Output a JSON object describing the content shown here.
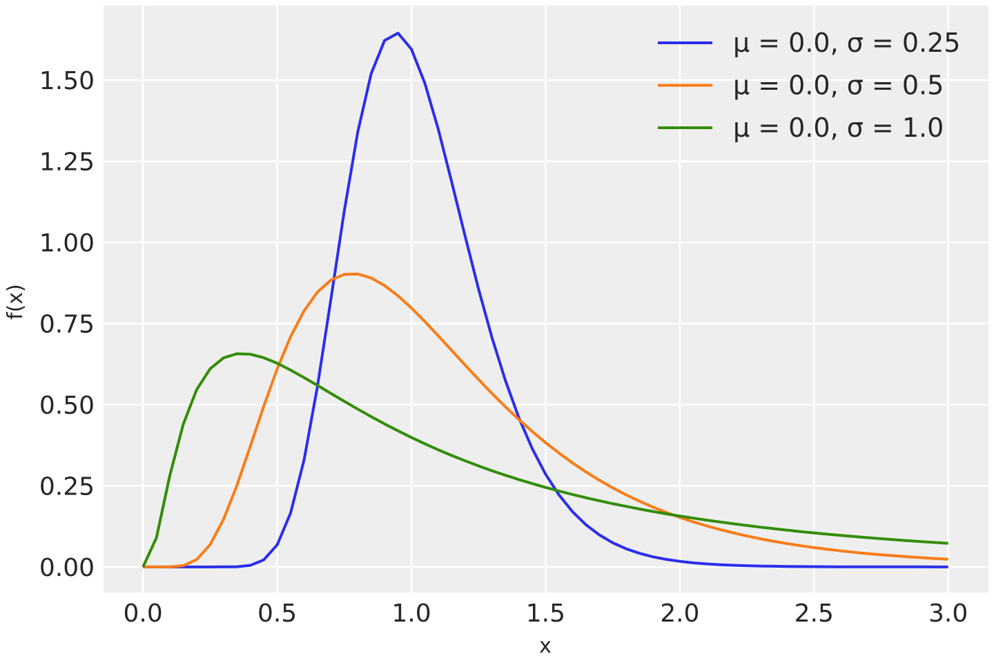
{
  "chart_data": {
    "type": "line",
    "title": "",
    "xlabel": "x",
    "ylabel": "f(x)",
    "xlim": [
      -0.147,
      3.15
    ],
    "ylim": [
      -0.079,
      1.73
    ],
    "grid": true,
    "legend_position": "top-right",
    "background_color": "#eeeeee",
    "grid_color": "#ffffff",
    "x_ticks": [
      0.0,
      0.5,
      1.0,
      1.5,
      2.0,
      2.5,
      3.0
    ],
    "x_tick_labels": [
      "0.0",
      "0.5",
      "1.0",
      "1.5",
      "2.0",
      "2.5",
      "3.0"
    ],
    "y_ticks": [
      0.0,
      0.25,
      0.5,
      0.75,
      1.0,
      1.25,
      1.5
    ],
    "y_tick_labels": [
      "0.00",
      "0.25",
      "0.50",
      "0.75",
      "1.00",
      "1.25",
      "1.50"
    ],
    "x": [
      0,
      0.05,
      0.1,
      0.15,
      0.2,
      0.25,
      0.3,
      0.35,
      0.4,
      0.45,
      0.5,
      0.55,
      0.6,
      0.65,
      0.7,
      0.75,
      0.8,
      0.85,
      0.9,
      0.95,
      1.0,
      1.05,
      1.1,
      1.15,
      1.2,
      1.25,
      1.3,
      1.35,
      1.4,
      1.45,
      1.5,
      1.55,
      1.6,
      1.65,
      1.7,
      1.75,
      1.8,
      1.85,
      1.9,
      1.95,
      2.0,
      2.05,
      2.1,
      2.15,
      2.2,
      2.25,
      2.3,
      2.35,
      2.4,
      2.45,
      2.5,
      2.55,
      2.6,
      2.65,
      2.7,
      2.75,
      2.8,
      2.85,
      2.9,
      2.95,
      3.0
    ],
    "series": [
      {
        "name": "μ = 0.0, σ = 0.25",
        "color": "#2a2eec",
        "values": [
          0,
          0,
          0,
          0,
          0,
          0,
          0.0001,
          0.0007,
          0.0048,
          0.0216,
          0.0683,
          0.1662,
          0.3297,
          0.5563,
          0.8239,
          1.0974,
          1.3393,
          1.5198,
          1.6224,
          1.6448,
          1.5958,
          1.4911,
          1.349,
          1.1869,
          1.0193,
          0.8571,
          0.7077,
          0.5751,
          0.4608,
          0.3647,
          0.2855,
          0.2215,
          0.1704,
          0.1301,
          0.0987,
          0.0744,
          0.0559,
          0.0418,
          0.0311,
          0.0231,
          0.0171,
          0.0126,
          0.0093,
          0.0068,
          0.005,
          0.0037,
          0.0027,
          0.002,
          0.0014,
          0.0011,
          0.0008,
          0.0006,
          0.0004,
          0.0003,
          0.0002,
          0.0002,
          0.0001,
          0.0001,
          0.0001,
          0.0,
          0.0
        ]
      },
      {
        "name": "μ = 0.0, σ = 0.5",
        "color": "#fa7c17",
        "values": [
          0,
          0,
          0.0002,
          0.004,
          0.0225,
          0.0684,
          0.1465,
          0.2516,
          0.3721,
          0.4953,
          0.6104,
          0.7098,
          0.7891,
          0.8469,
          0.8838,
          0.9016,
          0.9028,
          0.8904,
          0.8671,
          0.8355,
          0.7979,
          0.7563,
          0.7123,
          0.6672,
          0.6221,
          0.5778,
          0.5348,
          0.4936,
          0.4545,
          0.4175,
          0.3829,
          0.3506,
          0.3206,
          0.2928,
          0.2672,
          0.2437,
          0.2221,
          0.2023,
          0.1842,
          0.1677,
          0.1526,
          0.1389,
          0.1263,
          0.115,
          0.1046,
          0.0952,
          0.0866,
          0.0788,
          0.0718,
          0.0654,
          0.0595,
          0.0542,
          0.0494,
          0.0451,
          0.0411,
          0.0375,
          0.0342,
          0.0312,
          0.0285,
          0.026,
          0.0238
        ]
      },
      {
        "name": "μ = 0.0, σ = 1.0",
        "color": "#328c06",
        "values": [
          0,
          0.0898,
          0.2815,
          0.4398,
          0.5462,
          0.6104,
          0.6442,
          0.657,
          0.6555,
          0.6445,
          0.6275,
          0.6066,
          0.5836,
          0.5594,
          0.5348,
          0.5104,
          0.4864,
          0.4632,
          0.4408,
          0.4194,
          0.3989,
          0.3795,
          0.361,
          0.3435,
          0.327,
          0.3113,
          0.2965,
          0.2825,
          0.2693,
          0.2568,
          0.245,
          0.2338,
          0.2233,
          0.2133,
          0.2039,
          0.1949,
          0.1865,
          0.1785,
          0.1709,
          0.1637,
          0.1569,
          0.1504,
          0.1443,
          0.1384,
          0.1329,
          0.1276,
          0.1226,
          0.1178,
          0.1133,
          0.109,
          0.1049,
          0.1009,
          0.0972,
          0.0936,
          0.0902,
          0.087,
          0.0839,
          0.0809,
          0.078,
          0.0753,
          0.0727
        ]
      }
    ]
  }
}
